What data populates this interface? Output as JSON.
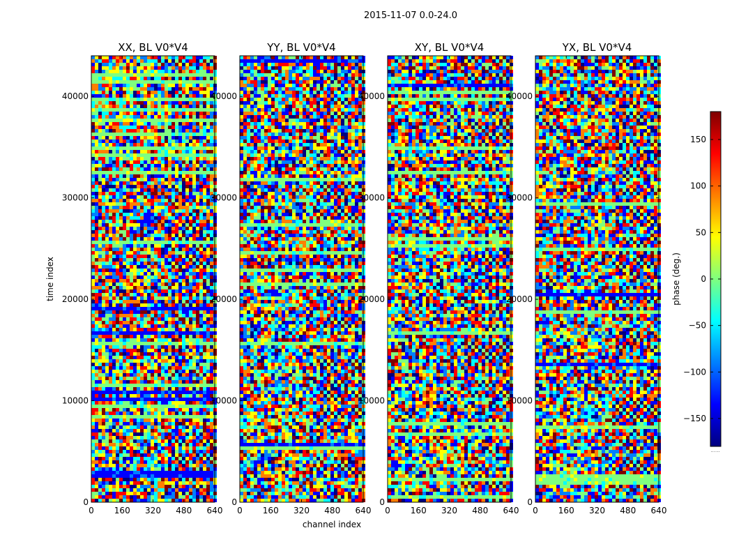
{
  "chart_data": {
    "type": "heatmap",
    "title": "2015-11-07 0.0-24.0",
    "xlabel": "channel index",
    "ylabel": "time index",
    "xlim": [
      0,
      640
    ],
    "ylim": [
      0,
      44000
    ],
    "xticks": [
      0,
      160,
      320,
      480,
      640
    ],
    "yticks": [
      0,
      10000,
      20000,
      30000,
      40000
    ],
    "panels": [
      {
        "name": "XX",
        "title": "XX, BL V0*V4"
      },
      {
        "name": "YY",
        "title": "YY, BL V0*V4"
      },
      {
        "name": "XY",
        "title": "XY, BL V0*V4"
      },
      {
        "name": "YX",
        "title": "YX, BL V0*V4"
      }
    ],
    "colorbar": {
      "label": "phase (deg.)",
      "range": [
        -180,
        180
      ],
      "ticks": [
        -150,
        -100,
        -50,
        0,
        50,
        100,
        150
      ],
      "colormap": "jet",
      "bottom_text": "......"
    },
    "colormap_stops": [
      "#00007f",
      "#0000ff",
      "#007fff",
      "#00ffff",
      "#7fff7f",
      "#ffff00",
      "#ff7f00",
      "#ff0000",
      "#7f0000"
    ]
  }
}
